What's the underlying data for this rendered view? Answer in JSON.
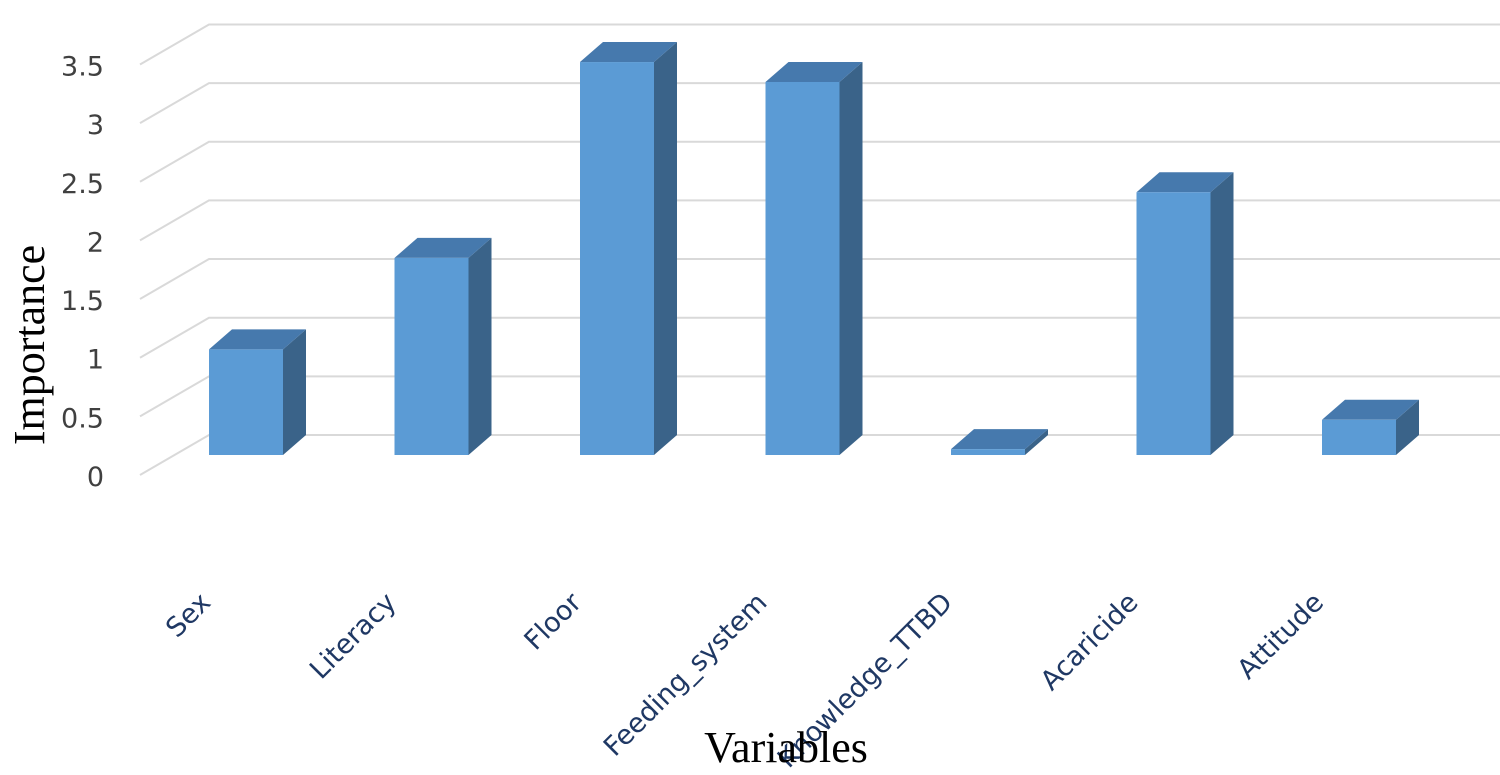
{
  "chart_data": {
    "type": "bar",
    "style": "3d-column",
    "title": "",
    "xlabel": "Variables",
    "ylabel": "Importance",
    "categories": [
      "Sex",
      "Literacy",
      "Floor",
      "Feeding_system",
      "Knowledge_TTBD",
      "Acaricide",
      "Attitude"
    ],
    "values": [
      0.9,
      1.68,
      3.35,
      3.18,
      0.05,
      2.24,
      0.3
    ],
    "yticks": [
      "0",
      "0.5",
      "1",
      "1.5",
      "2",
      "2.5",
      "3",
      "3.5"
    ],
    "ylim": [
      0,
      3.5
    ],
    "grid": true,
    "legend": "none",
    "colors": {
      "front": "#5b9bd5",
      "side": "#3a6389",
      "top": "#4679ad",
      "grid": "#d9d9d9"
    }
  }
}
